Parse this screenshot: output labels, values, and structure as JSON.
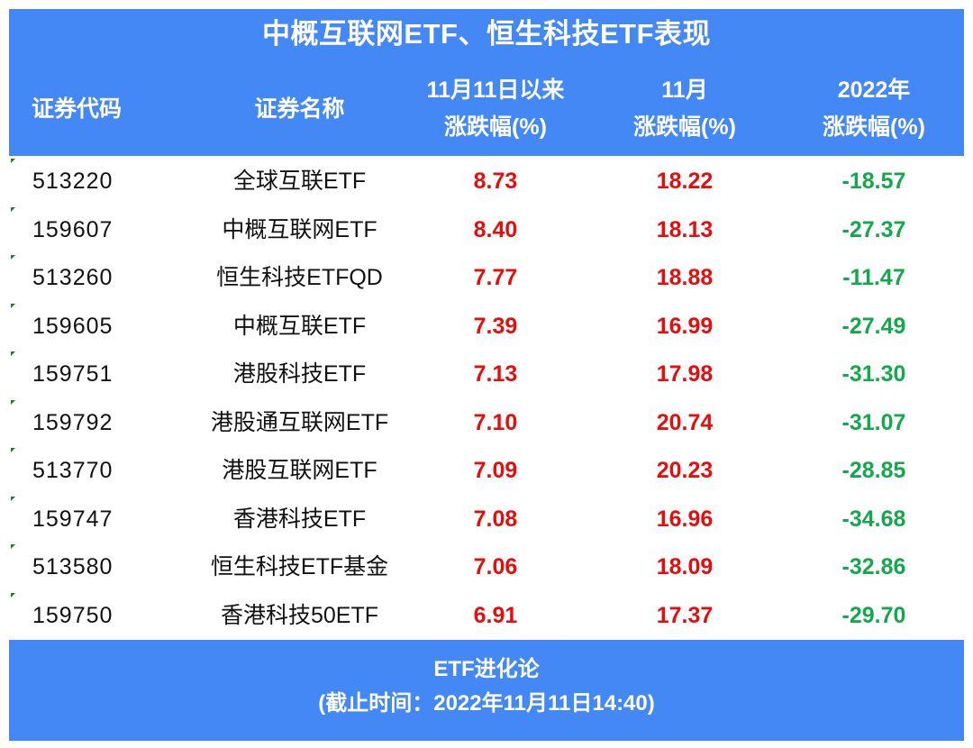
{
  "title": "中概互联网ETF、恒生科技ETF表现",
  "columns": [
    {
      "line1": "证券代码",
      "line2": ""
    },
    {
      "line1": "证券名称",
      "line2": ""
    },
    {
      "line1": "11月11日以来",
      "line2": "涨跌幅(%)"
    },
    {
      "line1": "11月",
      "line2": "涨跌幅(%)"
    },
    {
      "line1": "2022年",
      "line2": "涨跌幅(%)"
    }
  ],
  "rows": [
    {
      "code": "513220",
      "name": "全球互联ETF",
      "since_nov11": "8.73",
      "nov": "18.22",
      "ytd": "-18.57"
    },
    {
      "code": "159607",
      "name": "中概互联网ETF",
      "since_nov11": "8.40",
      "nov": "18.13",
      "ytd": "-27.37"
    },
    {
      "code": "513260",
      "name": "恒生科技ETFQD",
      "since_nov11": "7.77",
      "nov": "18.88",
      "ytd": "-11.47"
    },
    {
      "code": "159605",
      "name": "中概互联ETF",
      "since_nov11": "7.39",
      "nov": "16.99",
      "ytd": "-27.49"
    },
    {
      "code": "159751",
      "name": "港股科技ETF",
      "since_nov11": "7.13",
      "nov": "17.98",
      "ytd": "-31.30"
    },
    {
      "code": "159792",
      "name": "港股通互联网ETF",
      "since_nov11": "7.10",
      "nov": "20.74",
      "ytd": "-31.07"
    },
    {
      "code": "513770",
      "name": "港股互联网ETF",
      "since_nov11": "7.09",
      "nov": "20.23",
      "ytd": "-28.85"
    },
    {
      "code": "159747",
      "name": "香港科技ETF",
      "since_nov11": "7.08",
      "nov": "16.96",
      "ytd": "-34.68"
    },
    {
      "code": "513580",
      "name": "恒生科技ETF基金",
      "since_nov11": "7.06",
      "nov": "18.09",
      "ytd": "-32.86"
    },
    {
      "code": "159750",
      "name": "香港科技50ETF",
      "since_nov11": "6.91",
      "nov": "17.37",
      "ytd": "-29.70"
    }
  ],
  "footer": {
    "source": "ETF进化论",
    "cutoff": "(截止时间：2022年11月11日14:40)"
  },
  "colors": {
    "header_bg": "#4488f5",
    "positive": "#e60d0d",
    "negative": "#14a84c"
  }
}
